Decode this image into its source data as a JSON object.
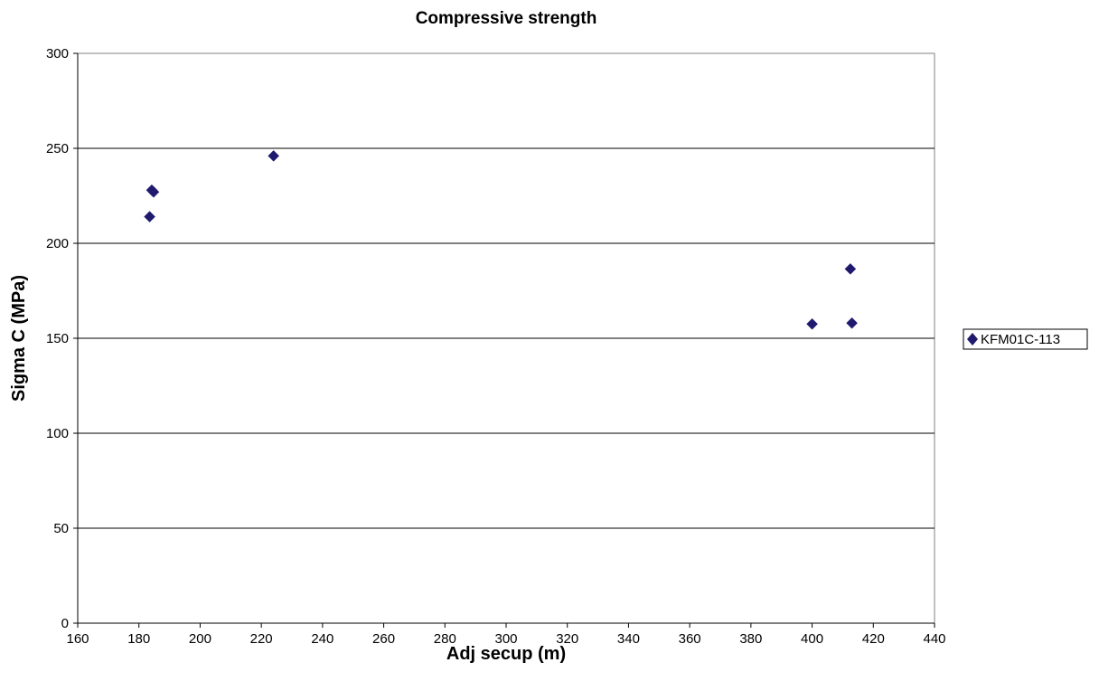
{
  "chart_data": {
    "type": "scatter",
    "title": "Compressive strength",
    "xlabel": "Adj secup (m)",
    "ylabel": "Sigma C (MPa)",
    "xlim": [
      160,
      440
    ],
    "ylim": [
      0,
      300
    ],
    "xticks": [
      160,
      180,
      200,
      220,
      240,
      260,
      280,
      300,
      320,
      340,
      360,
      380,
      400,
      420,
      440
    ],
    "yticks": [
      0,
      50,
      100,
      150,
      200,
      250,
      300
    ],
    "grid": "horizontal major",
    "legend": "right",
    "marker": "diamond",
    "series": [
      {
        "name": "KFM01C-113",
        "color": "#1f1a6e",
        "points": [
          {
            "x": 183.5,
            "y": 214
          },
          {
            "x": 184.2,
            "y": 228
          },
          {
            "x": 184.8,
            "y": 227
          },
          {
            "x": 224.0,
            "y": 246
          },
          {
            "x": 400.0,
            "y": 157.5
          },
          {
            "x": 412.5,
            "y": 186.5
          },
          {
            "x": 413.0,
            "y": 158
          }
        ]
      }
    ]
  }
}
